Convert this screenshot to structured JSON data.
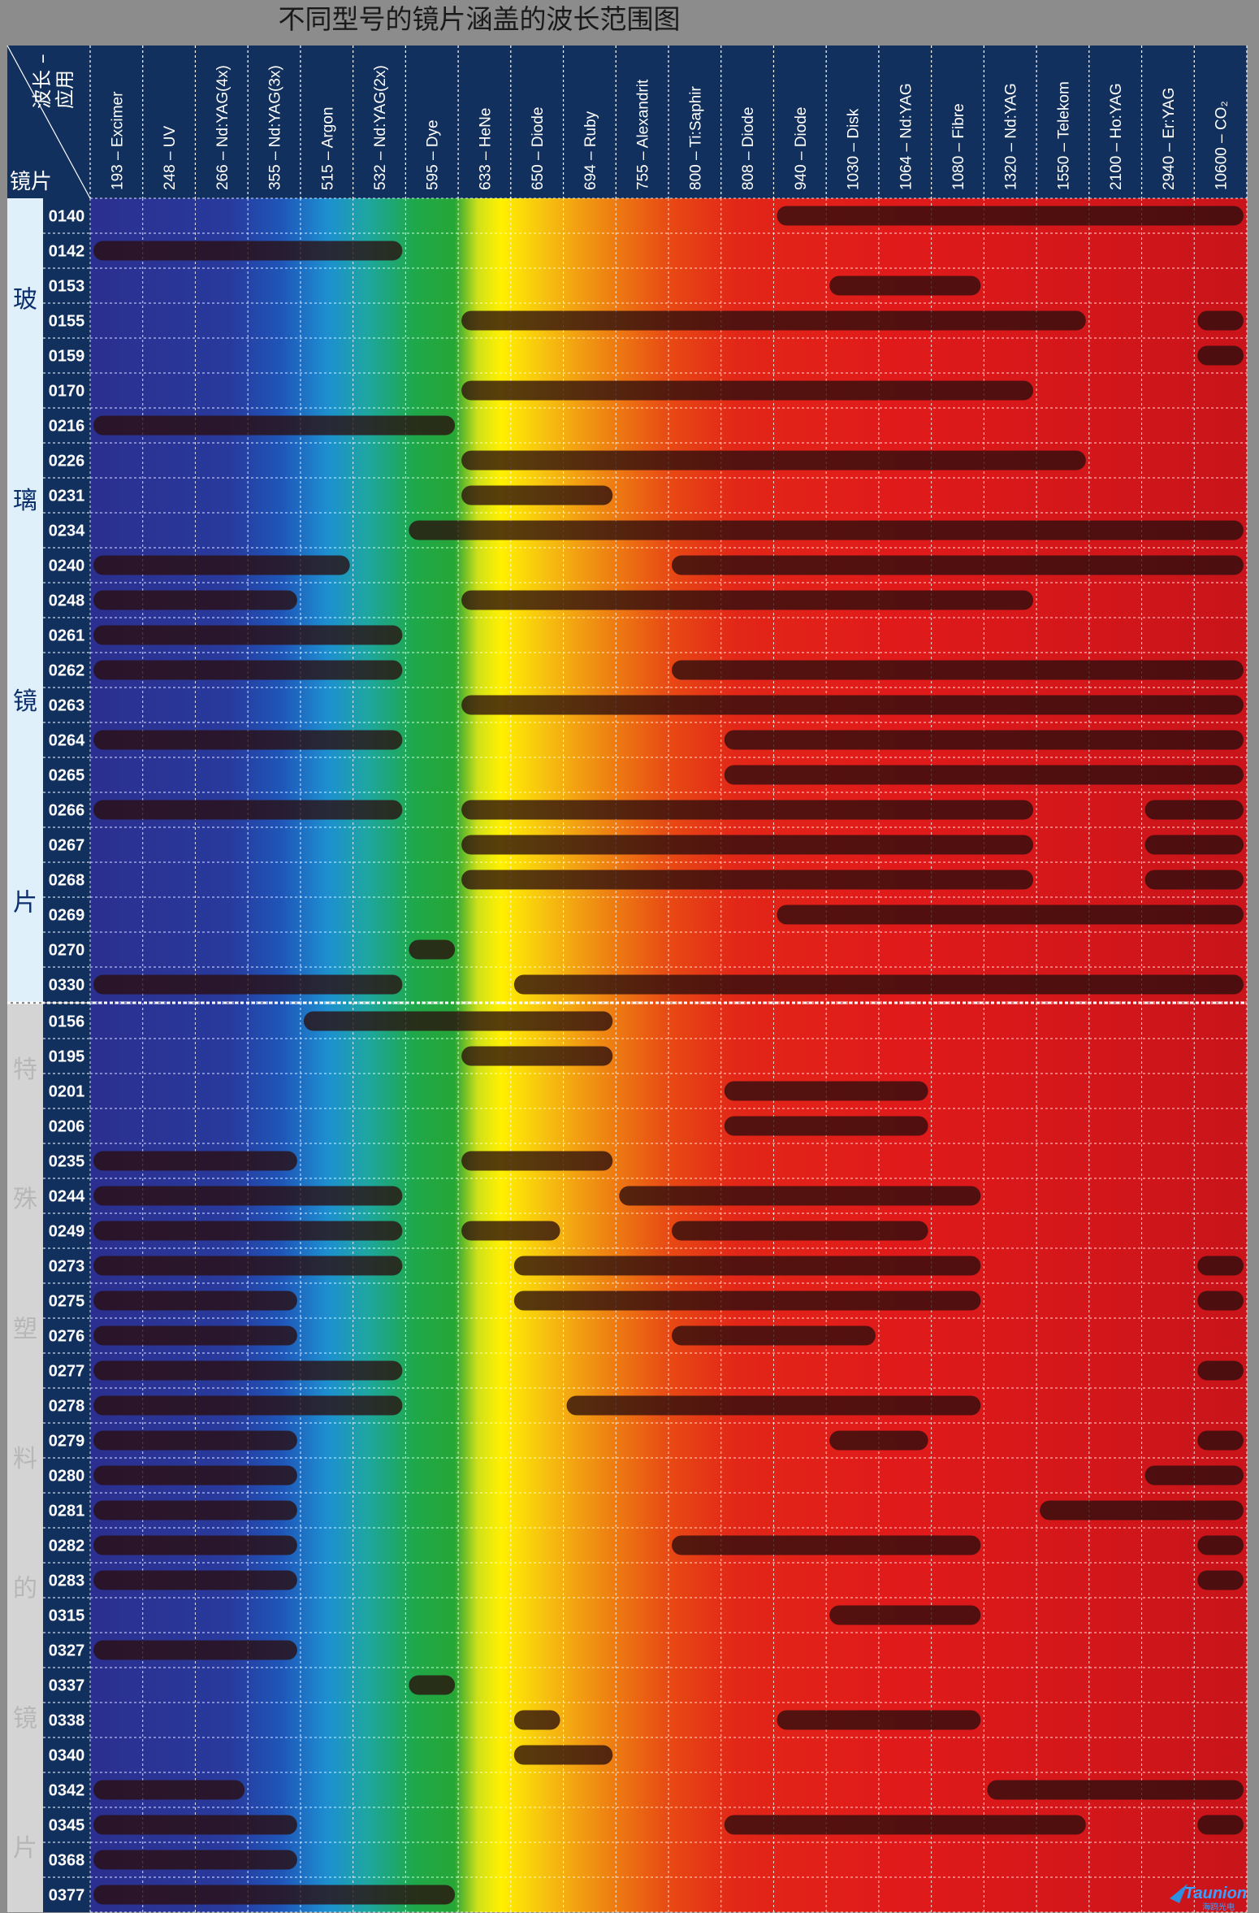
{
  "title": "不同型号的镜片涵盖的波长范围图",
  "corner": {
    "top": "波长 –",
    "top2": "应用",
    "bottom": "镜片"
  },
  "logo": {
    "text": "Taunion",
    "sub": "海鸥光电"
  },
  "colors": {
    "header_bg": "#12305e",
    "bar": "#2a0d0d",
    "group1_label_bg": "#dff0fb",
    "group2_label_bg": "#d4d4d4"
  },
  "chart_data": {
    "type": "table",
    "title": "不同型号的镜片涵盖的波长范围图",
    "columns": [
      "193 – Excimer",
      "248 – UV",
      "266 – Nd:YAG(4x)",
      "355 – Nd:YAG(3x)",
      "515 – Argon",
      "532 – Nd:YAG(2x)",
      "595 – Dye",
      "633 – HeNe",
      "650 – Diode",
      "694 – Ruby",
      "755 – Alexandrit",
      "800 – Ti:Saphir",
      "808 – Diode",
      "940 – Diode",
      "1030 – Disk",
      "1064 – Nd:YAG",
      "1080 – Fibre",
      "1320 – Nd:YAG",
      "1550 – Telekom",
      "2100 – Ho:YAG",
      "2940 – Er:YAG",
      "10600 – CO₂"
    ],
    "groups": [
      {
        "label": "玻璃镜片",
        "chars": [
          "玻",
          "璃",
          "镜",
          "片"
        ],
        "rows": [
          {
            "code": "0140",
            "ranges": [
              [
                13,
                21
              ]
            ]
          },
          {
            "code": "0142",
            "ranges": [
              [
                0,
                5
              ]
            ]
          },
          {
            "code": "0153",
            "ranges": [
              [
                14,
                16
              ]
            ]
          },
          {
            "code": "0155",
            "ranges": [
              [
                7,
                18
              ],
              [
                21,
                21
              ]
            ]
          },
          {
            "code": "0159",
            "ranges": [
              [
                21,
                21
              ]
            ]
          },
          {
            "code": "0170",
            "ranges": [
              [
                7,
                17
              ]
            ]
          },
          {
            "code": "0216",
            "ranges": [
              [
                0,
                6
              ]
            ]
          },
          {
            "code": "0226",
            "ranges": [
              [
                7,
                18
              ]
            ]
          },
          {
            "code": "0231",
            "ranges": [
              [
                7,
                9
              ]
            ]
          },
          {
            "code": "0234",
            "ranges": [
              [
                6,
                21
              ]
            ]
          },
          {
            "code": "0240",
            "ranges": [
              [
                0,
                4
              ],
              [
                11,
                21
              ]
            ]
          },
          {
            "code": "0248",
            "ranges": [
              [
                0,
                3
              ],
              [
                7,
                17
              ]
            ]
          },
          {
            "code": "0261",
            "ranges": [
              [
                0,
                5
              ]
            ]
          },
          {
            "code": "0262",
            "ranges": [
              [
                0,
                5
              ],
              [
                11,
                21
              ]
            ]
          },
          {
            "code": "0263",
            "ranges": [
              [
                7,
                21
              ]
            ]
          },
          {
            "code": "0264",
            "ranges": [
              [
                0,
                5
              ],
              [
                12,
                21
              ]
            ]
          },
          {
            "code": "0265",
            "ranges": [
              [
                12,
                21
              ]
            ]
          },
          {
            "code": "0266",
            "ranges": [
              [
                0,
                5
              ],
              [
                7,
                17
              ],
              [
                20,
                21
              ]
            ]
          },
          {
            "code": "0267",
            "ranges": [
              [
                7,
                17
              ],
              [
                20,
                21
              ]
            ]
          },
          {
            "code": "0268",
            "ranges": [
              [
                7,
                17
              ],
              [
                20,
                21
              ]
            ]
          },
          {
            "code": "0269",
            "ranges": [
              [
                13,
                21
              ]
            ]
          },
          {
            "code": "0270",
            "ranges": [
              [
                6,
                6
              ]
            ]
          },
          {
            "code": "0330",
            "ranges": [
              [
                0,
                5
              ],
              [
                8,
                21
              ]
            ]
          }
        ]
      },
      {
        "label": "特殊塑料的镜片",
        "chars": [
          "特",
          "殊",
          "塑",
          "料",
          "的",
          "镜",
          "片"
        ],
        "rows": [
          {
            "code": "0156",
            "ranges": [
              [
                4,
                9
              ]
            ]
          },
          {
            "code": "0195",
            "ranges": [
              [
                7,
                9
              ]
            ]
          },
          {
            "code": "0201",
            "ranges": [
              [
                12,
                15
              ]
            ]
          },
          {
            "code": "0206",
            "ranges": [
              [
                12,
                15
              ]
            ]
          },
          {
            "code": "0235",
            "ranges": [
              [
                0,
                3
              ],
              [
                7,
                9
              ]
            ]
          },
          {
            "code": "0244",
            "ranges": [
              [
                0,
                5
              ],
              [
                10,
                16
              ]
            ]
          },
          {
            "code": "0249",
            "ranges": [
              [
                0,
                5
              ],
              [
                7,
                8
              ],
              [
                11,
                15
              ]
            ]
          },
          {
            "code": "0273",
            "ranges": [
              [
                0,
                5
              ],
              [
                8,
                16
              ],
              [
                21,
                21
              ]
            ]
          },
          {
            "code": "0275",
            "ranges": [
              [
                0,
                3
              ],
              [
                8,
                16
              ],
              [
                21,
                21
              ]
            ]
          },
          {
            "code": "0276",
            "ranges": [
              [
                0,
                3
              ],
              [
                11,
                14
              ]
            ]
          },
          {
            "code": "0277",
            "ranges": [
              [
                0,
                5
              ],
              [
                21,
                21
              ]
            ]
          },
          {
            "code": "0278",
            "ranges": [
              [
                0,
                5
              ],
              [
                9,
                16
              ]
            ]
          },
          {
            "code": "0279",
            "ranges": [
              [
                0,
                3
              ],
              [
                14,
                15
              ],
              [
                21,
                21
              ]
            ]
          },
          {
            "code": "0280",
            "ranges": [
              [
                0,
                3
              ],
              [
                20,
                21
              ]
            ]
          },
          {
            "code": "0281",
            "ranges": [
              [
                0,
                3
              ],
              [
                18,
                21
              ]
            ]
          },
          {
            "code": "0282",
            "ranges": [
              [
                0,
                3
              ],
              [
                11,
                16
              ],
              [
                21,
                21
              ]
            ]
          },
          {
            "code": "0283",
            "ranges": [
              [
                0,
                3
              ],
              [
                21,
                21
              ]
            ]
          },
          {
            "code": "0315",
            "ranges": [
              [
                14,
                16
              ]
            ]
          },
          {
            "code": "0327",
            "ranges": [
              [
                0,
                3
              ]
            ]
          },
          {
            "code": "0337",
            "ranges": [
              [
                6,
                6
              ]
            ]
          },
          {
            "code": "0338",
            "ranges": [
              [
                8,
                8
              ],
              [
                13,
                16
              ]
            ]
          },
          {
            "code": "0340",
            "ranges": [
              [
                8,
                9
              ]
            ]
          },
          {
            "code": "0342",
            "ranges": [
              [
                0,
                2
              ],
              [
                17,
                21
              ]
            ]
          },
          {
            "code": "0345",
            "ranges": [
              [
                0,
                3
              ],
              [
                12,
                18
              ],
              [
                21,
                21
              ]
            ]
          },
          {
            "code": "0368",
            "ranges": [
              [
                0,
                3
              ]
            ]
          },
          {
            "code": "0377",
            "ranges": [
              [
                0,
                6
              ]
            ]
          }
        ]
      }
    ],
    "grid": true,
    "legend": "none"
  }
}
